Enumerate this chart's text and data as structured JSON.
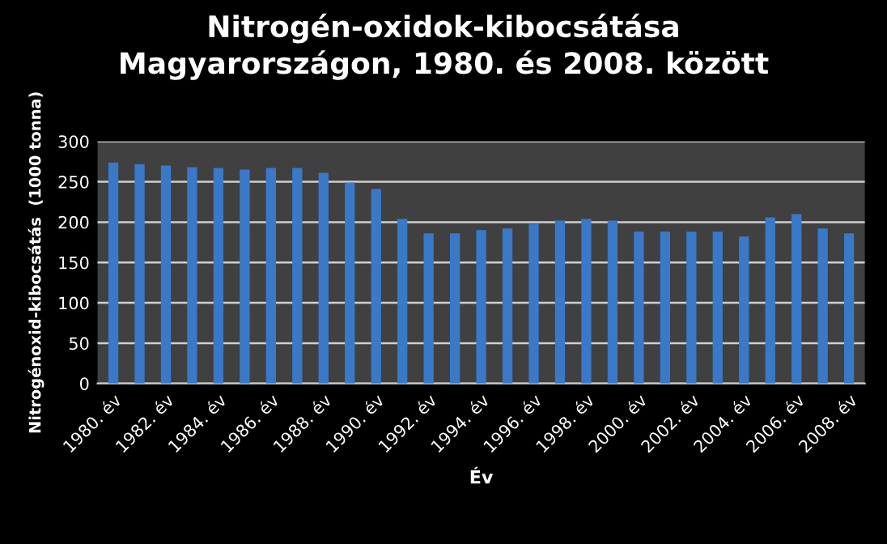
{
  "chart_data": {
    "type": "bar",
    "title": "Nitrogén-oxidok-kibocsátása\nMagyarországon, 1980. és 2008. között",
    "xlabel": "Év",
    "ylabel": "Nitrogénoxid-kibocsátás  (1000 tonna)",
    "categories": [
      "1980. év",
      null,
      "1982. év",
      null,
      "1984. év",
      null,
      "1986. év",
      null,
      "1988. év",
      null,
      "1990. év",
      null,
      "1992. év",
      null,
      "1994. év",
      null,
      "1996. év",
      null,
      "1998. év",
      null,
      "2000. év",
      null,
      "2002. év",
      null,
      "2004. év",
      null,
      "2006. év",
      null,
      "2008. év"
    ],
    "values": [
      274,
      272,
      270,
      268,
      267,
      265,
      267,
      267,
      261,
      249,
      241,
      204,
      186,
      186,
      190,
      192,
      198,
      202,
      204,
      202,
      188,
      188,
      188,
      188,
      182,
      206,
      210,
      192,
      186
    ],
    "color": "#3a78c8",
    "ylim": [
      0,
      300
    ],
    "yticks": [
      0,
      50,
      100,
      150,
      200,
      250,
      300
    ],
    "grid": "y",
    "legend": false
  }
}
